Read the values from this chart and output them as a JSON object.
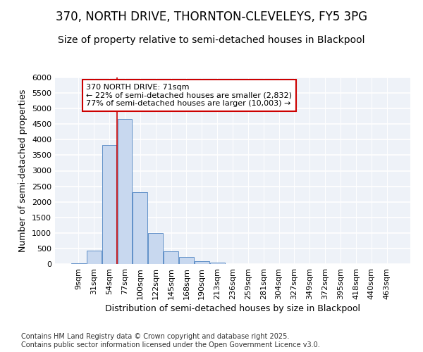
{
  "title_line1": "370, NORTH DRIVE, THORNTON-CLEVELEYS, FY5 3PG",
  "title_line2": "Size of property relative to semi-detached houses in Blackpool",
  "xlabel": "Distribution of semi-detached houses by size in Blackpool",
  "ylabel": "Number of semi-detached properties",
  "categories": [
    "9sqm",
    "31sqm",
    "54sqm",
    "77sqm",
    "100sqm",
    "122sqm",
    "145sqm",
    "168sqm",
    "190sqm",
    "213sqm",
    "236sqm",
    "259sqm",
    "281sqm",
    "304sqm",
    "327sqm",
    "349sqm",
    "372sqm",
    "395sqm",
    "418sqm",
    "440sqm",
    "463sqm"
  ],
  "values": [
    30,
    430,
    3820,
    4670,
    2300,
    1000,
    400,
    230,
    100,
    50,
    0,
    0,
    0,
    0,
    0,
    0,
    0,
    0,
    0,
    0,
    0
  ],
  "bar_color": "#c8d8ef",
  "bar_edge_color": "#6090c8",
  "vline_x_index": 2.5,
  "vline_color": "#cc0000",
  "annotation_text": "370 NORTH DRIVE: 71sqm\n← 22% of semi-detached houses are smaller (2,832)\n77% of semi-detached houses are larger (10,003) →",
  "annotation_box_color": "#ffffff",
  "annotation_box_edge": "#cc0000",
  "ylim": [
    0,
    6000
  ],
  "yticks": [
    0,
    500,
    1000,
    1500,
    2000,
    2500,
    3000,
    3500,
    4000,
    4500,
    5000,
    5500,
    6000
  ],
  "background_color": "#eef2f8",
  "grid_color": "#ffffff",
  "footer_line1": "Contains HM Land Registry data © Crown copyright and database right 2025.",
  "footer_line2": "Contains public sector information licensed under the Open Government Licence v3.0.",
  "title_fontsize": 12,
  "subtitle_fontsize": 10,
  "axis_label_fontsize": 9,
  "tick_fontsize": 8,
  "annotation_fontsize": 8,
  "footer_fontsize": 7
}
